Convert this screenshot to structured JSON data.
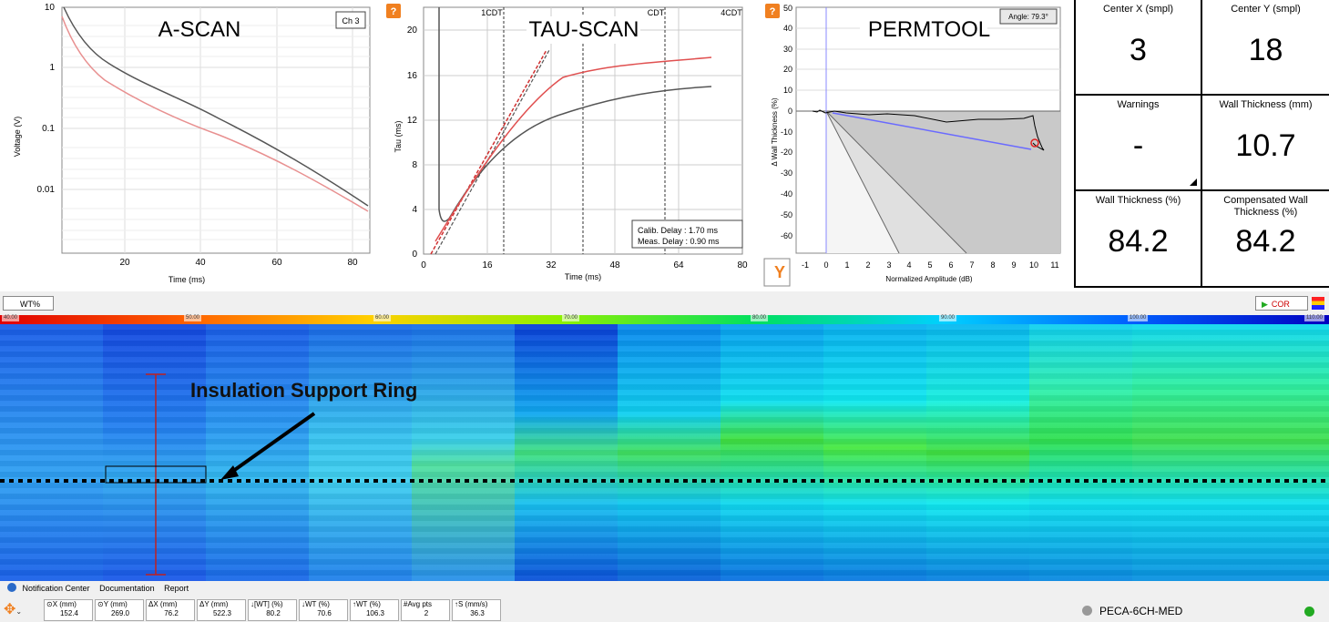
{
  "ascan": {
    "title": "A-SCAN",
    "channel": "Ch 3",
    "ylabel": "Voltage (V)",
    "xlabel": "Time (ms)",
    "yticks": [
      "10",
      "1",
      "0.1",
      "0.01"
    ],
    "xticks": [
      "20",
      "40",
      "60",
      "80"
    ]
  },
  "tauscan": {
    "title": "TAU-SCAN",
    "ylabel": "Tau (ms)",
    "xlabel": "Time (ms)",
    "yticks": [
      "20",
      "16",
      "12",
      "8",
      "4",
      "0"
    ],
    "xticks": [
      "0",
      "16",
      "32",
      "48",
      "64",
      "80"
    ],
    "markers": [
      "1CDT",
      "CDT",
      "4CDT"
    ],
    "calib_delay": "Calib. Delay : 1.70 ms",
    "meas_delay": "Meas. Delay : 0.90 ms",
    "help_icon": "?"
  },
  "permtool": {
    "title": "PERMTOOL",
    "angle": "Angle: 79.3°",
    "ylabel": "Δ Wall Thickness (%)",
    "xlabel": "Normalized Amplitude (dB)",
    "yticks": [
      "50",
      "40",
      "30",
      "20",
      "10",
      "0",
      "-10",
      "-20",
      "-30",
      "-40",
      "-50",
      "-60"
    ],
    "xticks": [
      "-1",
      "0",
      "1",
      "2",
      "3",
      "4",
      "5",
      "6",
      "7",
      "8",
      "9",
      "10",
      "11"
    ],
    "help_icon": "?",
    "y_button": "Y"
  },
  "stats": {
    "center_x_label": "Center X (smpl)",
    "center_x": "3",
    "center_y_label": "Center Y (smpl)",
    "center_y": "18",
    "warnings_label": "Warnings",
    "warnings": "-",
    "wall_thickness_mm_label": "Wall Thickness (mm)",
    "wall_thickness_mm": "10.7",
    "wall_thickness_pct_label": "Wall Thickness (%)",
    "wall_thickness_pct": "84.2",
    "comp_wall_label": "Compensated Wall Thickness (%)",
    "comp_wall": "84.2"
  },
  "cscan": {
    "mode_select": "WT%",
    "cor_button": "COR",
    "scale_ticks": [
      "40.00",
      "50.00",
      "60.00",
      "70.00",
      "80.00",
      "90.00",
      "100.00",
      "110.00"
    ],
    "annotation": "Insulation Support Ring"
  },
  "statusbar": {
    "tabs": [
      "Notification Center",
      "Documentation",
      "Report"
    ],
    "metrics": [
      {
        "label": "⊙X (mm)",
        "value": "152.4"
      },
      {
        "label": "⊙Y (mm)",
        "value": "269.0"
      },
      {
        "label": "ΔX (mm)",
        "value": "76.2"
      },
      {
        "label": "ΔY (mm)",
        "value": "522.3"
      },
      {
        "label": "↓[WT] (%)",
        "value": "80.2"
      },
      {
        "label": "↓WT (%)",
        "value": "70.6"
      },
      {
        "label": "↑WT (%)",
        "value": "106.3"
      },
      {
        "label": "#Avg pts",
        "value": "2"
      },
      {
        "label": "↑S (mm/s)",
        "value": "36.3"
      }
    ],
    "device": "PECA-6CH-MED"
  },
  "colors": {
    "curve_dark": "#555555",
    "curve_red": "#e05050",
    "cscan_low": "#0a3fd8",
    "cscan_mid": "#00e0f0",
    "cscan_high": "#30e040"
  }
}
